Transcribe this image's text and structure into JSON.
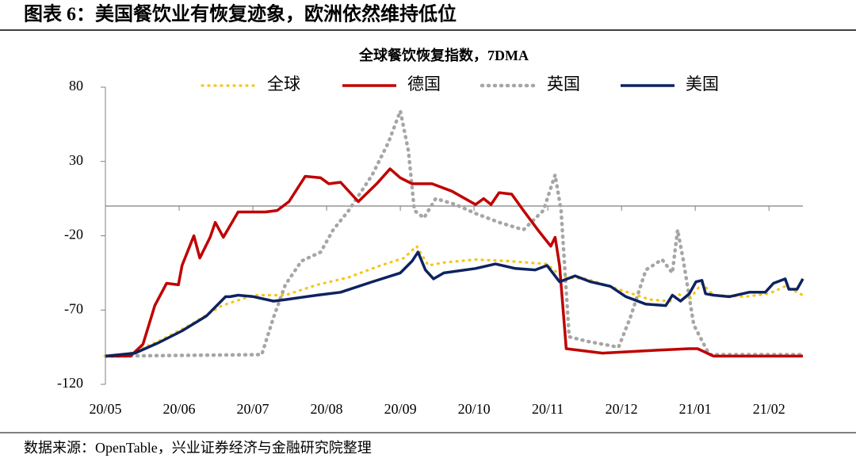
{
  "header": {
    "title": "图表 6：美国餐饮业有恢复迹象，欧洲依然维持低位"
  },
  "footer": {
    "source": "数据来源：OpenTable，兴业证券经济与金融研究院整理"
  },
  "chart_data": {
    "type": "line",
    "title": "全球餐饮恢复指数，7DMA",
    "xlim": [
      0,
      9.46
    ],
    "xticks": [
      {
        "value": 0,
        "label": "20/05"
      },
      {
        "value": 1,
        "label": "20/06"
      },
      {
        "value": 2,
        "label": "20/07"
      },
      {
        "value": 3,
        "label": "20/08"
      },
      {
        "value": 4,
        "label": "20/09"
      },
      {
        "value": 5,
        "label": "20/10"
      },
      {
        "value": 6,
        "label": "20/11"
      },
      {
        "value": 7,
        "label": "20/12"
      },
      {
        "value": 8,
        "label": "21/01"
      },
      {
        "value": 9,
        "label": "21/02"
      }
    ],
    "ylim": [
      -120,
      80
    ],
    "yticks": [
      -120,
      -70,
      -20,
      30,
      80
    ],
    "xaxis_crosses": 0,
    "legend": "top",
    "series": [
      {
        "name": "英国",
        "color": "#a6a6a6",
        "line_style": "dotted",
        "x": [
          0,
          2.12,
          2.28,
          2.44,
          2.66,
          2.92,
          3.09,
          3.3,
          3.62,
          3.84,
          4.0,
          4.11,
          4.19,
          4.32,
          4.48,
          4.75,
          5.02,
          5.34,
          5.67,
          5.94,
          6.1,
          6.18,
          6.29,
          6.53,
          6.96,
          7.12,
          7.33,
          7.55,
          7.69,
          7.76,
          7.84,
          7.98,
          8.19,
          9.46
        ],
        "values": [
          -101,
          -100,
          -75,
          -53,
          -37,
          -31,
          -16,
          -3,
          21,
          43,
          64,
          37,
          -3,
          -8,
          5,
          1,
          -5,
          -11,
          -16,
          -3,
          21,
          -3,
          -88,
          -91,
          -95,
          -75,
          -43,
          -36,
          -45,
          -16,
          -37,
          -80,
          -100,
          -100
        ]
      },
      {
        "name": "全球",
        "color": "#f5c518",
        "line_style": "dotted",
        "x": [
          0,
          0.29,
          0.72,
          1.15,
          1.58,
          2.01,
          2.44,
          2.87,
          3.3,
          3.73,
          4.05,
          4.22,
          4.38,
          4.59,
          5.02,
          5.45,
          5.99,
          6.2,
          6.53,
          6.96,
          7.39,
          7.66,
          7.76,
          7.92,
          8.09,
          8.25,
          8.68,
          9.0,
          9.22,
          9.46
        ],
        "values": [
          -101,
          -100,
          -91,
          -80,
          -67,
          -60,
          -60,
          -53,
          -48,
          -40,
          -35,
          -27,
          -40,
          -38,
          -36,
          -37,
          -39,
          -48,
          -49,
          -56,
          -63,
          -64,
          -59,
          -63,
          -52,
          -60,
          -61,
          -59,
          -54,
          -60
        ]
      },
      {
        "name": "德国",
        "color": "#c00000",
        "line_style": "solid",
        "x": [
          0,
          0.34,
          0.51,
          0.67,
          0.83,
          0.99,
          1.04,
          1.2,
          1.28,
          1.42,
          1.49,
          1.6,
          1.8,
          2.17,
          2.33,
          2.49,
          2.71,
          2.92,
          3.03,
          3.19,
          3.43,
          3.68,
          3.86,
          4.0,
          4.16,
          4.43,
          4.7,
          5.02,
          5.13,
          5.23,
          5.34,
          5.51,
          5.67,
          5.88,
          6.04,
          6.1,
          6.16,
          6.25,
          6.74,
          7.49,
          7.92,
          8.03,
          8.25,
          9.46
        ],
        "values": [
          -101,
          -101,
          -93,
          -67,
          -52,
          -53,
          -40,
          -20,
          -35,
          -21,
          -11,
          -21,
          -4,
          -4,
          -3,
          3,
          20,
          19,
          15,
          16,
          3,
          15,
          25,
          19,
          15,
          15,
          10,
          1,
          5,
          1,
          9,
          8,
          -3,
          -17,
          -27,
          -21,
          -40,
          -96,
          -99,
          -97,
          -96,
          -96,
          -101,
          -101
        ]
      },
      {
        "name": "美国",
        "color": "#0d2260",
        "line_style": "solid",
        "x": [
          0,
          0.4,
          0.72,
          1.04,
          1.37,
          1.63,
          1.69,
          1.8,
          2.01,
          2.28,
          2.44,
          2.87,
          3.19,
          3.62,
          4.0,
          4.16,
          4.24,
          4.34,
          4.45,
          4.59,
          5.02,
          5.29,
          5.56,
          5.83,
          5.99,
          6.16,
          6.37,
          6.58,
          6.85,
          7.06,
          7.33,
          7.6,
          7.69,
          7.8,
          7.92,
          8.01,
          8.09,
          8.14,
          8.25,
          8.46,
          8.73,
          8.95,
          9.06,
          9.22,
          9.27,
          9.38,
          9.46
        ],
        "values": [
          -101,
          -99,
          -92,
          -84,
          -74,
          -61,
          -61,
          -60,
          -61,
          -64,
          -63,
          -60,
          -58,
          -51,
          -45,
          -37,
          -31,
          -43,
          -49,
          -45,
          -42,
          -39,
          -42,
          -43,
          -40,
          -51,
          -47,
          -51,
          -54,
          -61,
          -66,
          -67,
          -60,
          -64,
          -59,
          -51,
          -50,
          -59,
          -60,
          -61,
          -58,
          -58,
          -52,
          -49,
          -56,
          -56,
          -49
        ]
      }
    ]
  }
}
